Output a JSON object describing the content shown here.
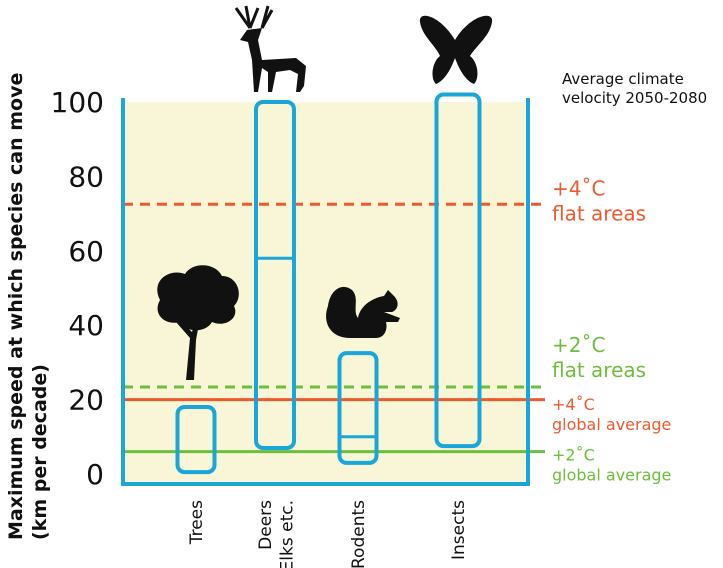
{
  "chart_data": {
    "type": "range_bar",
    "ylabel": "Maximum speed at which species can move\n(km per decade)",
    "annotation": "Average climate\nvelocity 2050-2080",
    "categories": [
      "Trees",
      "Deers\nElks etc.",
      "Rodents",
      "Insects"
    ],
    "low": [
      0.5,
      7,
      3,
      7.5
    ],
    "high": [
      18,
      100,
      32.5,
      102
    ],
    "median": [
      null,
      58,
      10,
      null
    ],
    "color": "#1aa6d8",
    "background": "#f8f6d6",
    "ylim": [
      -2.5,
      100
    ],
    "yticks": [
      0,
      20,
      40,
      60,
      80,
      100
    ],
    "reference_lines": [
      {
        "label": "+4˚C\nflat areas",
        "value": 72.5,
        "color": "#ee5a2e",
        "style": "dashed"
      },
      {
        "label": "+2˚C\nflat areas",
        "value": 23.4,
        "color": "#6cbf3c",
        "style": "dashed"
      },
      {
        "label": "+4˚C\nglobal average",
        "value": 20,
        "color": "#ee5a2e",
        "style": "solid"
      },
      {
        "label": "+2˚C\nglobal average",
        "value": 6,
        "color": "#6cbf3c",
        "style": "solid"
      }
    ]
  }
}
